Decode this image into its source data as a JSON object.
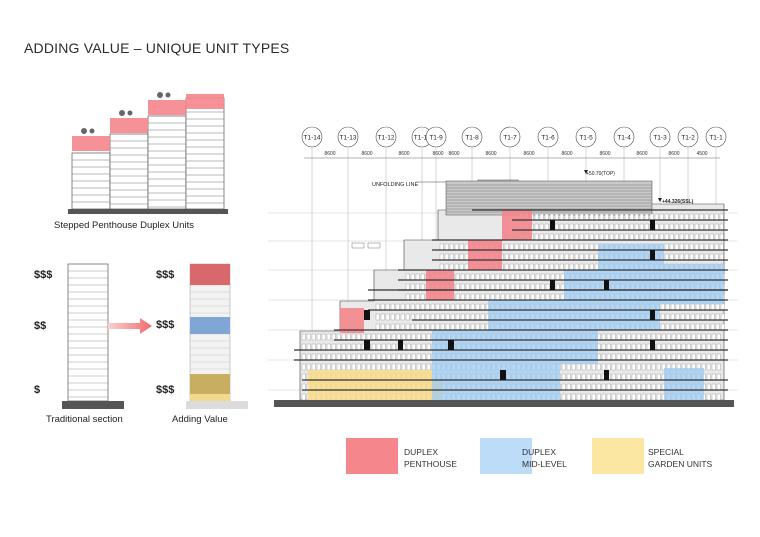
{
  "title": "ADDING VALUE – UNIQUE UNIT TYPES",
  "stepped": {
    "caption": "Stepped Penthouse Duplex Units"
  },
  "traditional": {
    "caption": "Traditional section",
    "price_top": "$$$",
    "price_mid": "$$",
    "price_bottom": "$"
  },
  "adding": {
    "caption": "Adding Value",
    "price_top": "$$$",
    "price_mid": "$$$",
    "price_bottom": "$$$"
  },
  "elevation": {
    "gridlines": [
      "T1-14",
      "T1-13",
      "T1-12",
      "T1-11",
      "T1-9",
      "T1-8",
      "T1-7",
      "T1-6",
      "T1-5",
      "T1-4",
      "T1-3",
      "T1-2",
      "T1-1"
    ],
    "dimensions": [
      "8600",
      "8600",
      "8600",
      "8600",
      "8600",
      "8600",
      "8600",
      "8600",
      "8600",
      "8600",
      "8600",
      "4500"
    ],
    "unfolding_line": "UNFOLDING LINE",
    "level_top": "+50.70(TOP)",
    "level_ssl": "+44.326(SSL)"
  },
  "legend": {
    "penthouse_line1": "DUPLEX",
    "penthouse_line2": "PENTHOUSE",
    "midlevel_line1": "DUPLEX",
    "midlevel_line2": "MID-LEVEL",
    "garden_line1": "SPECIAL",
    "garden_line2": "GARDEN UNITS"
  },
  "colors": {
    "penthouse": "#f4868c",
    "midlevel": "#9ccbf3",
    "garden": "#f8dc8a"
  }
}
